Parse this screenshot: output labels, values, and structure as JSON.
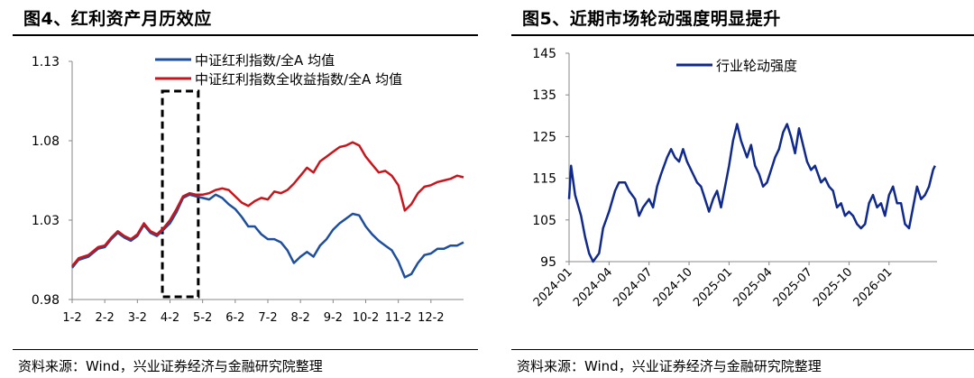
{
  "panels": {
    "left": {
      "title": "图4、红利资产月历效应",
      "source": "资料来源：Wind，兴业证券经济与金融研究院整理"
    },
    "right": {
      "title": "图5、近期市场轮动强度明显提升",
      "source": "资料来源：Wind，兴业证券经济与金融研究院整理"
    }
  },
  "colors": {
    "blue": "#1F4E9C",
    "red": "#C8151B",
    "navy": "#10298C"
  },
  "chart_data": [
    {
      "type": "line",
      "x_ticks": [
        "1-2",
        "2-2",
        "3-2",
        "4-2",
        "5-2",
        "6-2",
        "7-2",
        "8-2",
        "9-2",
        "10-2",
        "11-2",
        "12-2"
      ],
      "y_ticks": [
        "0.98",
        "1.03",
        "1.08",
        "1.13"
      ],
      "ylim": [
        0.98,
        1.13
      ],
      "grid": false,
      "legend_position": "top",
      "highlight_box": {
        "from": "3-25",
        "to": "4-28",
        "style": "dashed"
      },
      "series": [
        {
          "name": "中证红利指数/全A 均值",
          "color": "#1F4E9C",
          "values": [
            [
              1,
              1.0
            ],
            [
              1.2,
              1.005
            ],
            [
              1.5,
              1.007
            ],
            [
              1.8,
              1.012
            ],
            [
              2,
              1.013
            ],
            [
              2.2,
              1.018
            ],
            [
              2.4,
              1.022
            ],
            [
              2.6,
              1.019
            ],
            [
              2.8,
              1.017
            ],
            [
              3,
              1.02
            ],
            [
              3.2,
              1.027
            ],
            [
              3.4,
              1.022
            ],
            [
              3.6,
              1.02
            ],
            [
              3.8,
              1.024
            ],
            [
              4,
              1.028
            ],
            [
              4.2,
              1.035
            ],
            [
              4.4,
              1.044
            ],
            [
              4.6,
              1.046
            ],
            [
              4.8,
              1.045
            ],
            [
              5,
              1.044
            ],
            [
              5.2,
              1.043
            ],
            [
              5.4,
              1.046
            ],
            [
              5.6,
              1.044
            ],
            [
              5.8,
              1.04
            ],
            [
              6,
              1.037
            ],
            [
              6.2,
              1.032
            ],
            [
              6.4,
              1.026
            ],
            [
              6.6,
              1.026
            ],
            [
              6.8,
              1.021
            ],
            [
              7,
              1.018
            ],
            [
              7.2,
              1.018
            ],
            [
              7.4,
              1.016
            ],
            [
              7.6,
              1.011
            ],
            [
              7.8,
              1.003
            ],
            [
              8,
              1.007
            ],
            [
              8.2,
              1.01
            ],
            [
              8.4,
              1.007
            ],
            [
              8.6,
              1.014
            ],
            [
              8.8,
              1.018
            ],
            [
              9,
              1.024
            ],
            [
              9.2,
              1.028
            ],
            [
              9.4,
              1.031
            ],
            [
              9.6,
              1.034
            ],
            [
              9.8,
              1.033
            ],
            [
              10,
              1.026
            ],
            [
              10.2,
              1.021
            ],
            [
              10.4,
              1.017
            ],
            [
              10.6,
              1.014
            ],
            [
              10.8,
              1.011
            ],
            [
              11,
              1.004
            ],
            [
              11.2,
              0.994
            ],
            [
              11.4,
              0.996
            ],
            [
              11.6,
              1.003
            ],
            [
              11.8,
              1.008
            ],
            [
              12,
              1.009
            ],
            [
              12.2,
              1.012
            ],
            [
              12.4,
              1.012
            ],
            [
              12.6,
              1.014
            ],
            [
              12.8,
              1.014
            ],
            [
              13,
              1.016
            ]
          ]
        },
        {
          "name": "中证红利指数全收益指数/全A 均值",
          "color": "#C8151B",
          "values": [
            [
              1,
              1.001
            ],
            [
              1.2,
              1.006
            ],
            [
              1.5,
              1.008
            ],
            [
              1.8,
              1.013
            ],
            [
              2,
              1.014
            ],
            [
              2.2,
              1.019
            ],
            [
              2.4,
              1.023
            ],
            [
              2.6,
              1.02
            ],
            [
              2.8,
              1.018
            ],
            [
              3,
              1.021
            ],
            [
              3.2,
              1.028
            ],
            [
              3.4,
              1.023
            ],
            [
              3.6,
              1.021
            ],
            [
              3.8,
              1.025
            ],
            [
              4,
              1.03
            ],
            [
              4.2,
              1.037
            ],
            [
              4.4,
              1.045
            ],
            [
              4.6,
              1.047
            ],
            [
              4.8,
              1.046
            ],
            [
              5,
              1.046
            ],
            [
              5.2,
              1.047
            ],
            [
              5.4,
              1.049
            ],
            [
              5.6,
              1.05
            ],
            [
              5.8,
              1.049
            ],
            [
              6,
              1.045
            ],
            [
              6.2,
              1.041
            ],
            [
              6.4,
              1.039
            ],
            [
              6.6,
              1.042
            ],
            [
              6.8,
              1.044
            ],
            [
              7,
              1.043
            ],
            [
              7.2,
              1.048
            ],
            [
              7.4,
              1.047
            ],
            [
              7.6,
              1.049
            ],
            [
              7.8,
              1.053
            ],
            [
              8,
              1.058
            ],
            [
              8.2,
              1.063
            ],
            [
              8.4,
              1.06
            ],
            [
              8.6,
              1.067
            ],
            [
              8.8,
              1.07
            ],
            [
              9,
              1.073
            ],
            [
              9.2,
              1.076
            ],
            [
              9.4,
              1.077
            ],
            [
              9.6,
              1.079
            ],
            [
              9.8,
              1.077
            ],
            [
              10,
              1.07
            ],
            [
              10.2,
              1.065
            ],
            [
              10.4,
              1.06
            ],
            [
              10.6,
              1.061
            ],
            [
              10.8,
              1.058
            ],
            [
              11,
              1.052
            ],
            [
              11.2,
              1.036
            ],
            [
              11.4,
              1.04
            ],
            [
              11.6,
              1.047
            ],
            [
              11.8,
              1.051
            ],
            [
              12,
              1.052
            ],
            [
              12.2,
              1.054
            ],
            [
              12.4,
              1.055
            ],
            [
              12.6,
              1.056
            ],
            [
              12.8,
              1.058
            ],
            [
              13,
              1.057
            ]
          ]
        }
      ]
    },
    {
      "type": "line",
      "x_ticks": [
        "2024-01",
        "2024-04",
        "2024-07",
        "2024-10",
        "2025-01",
        "2025-04",
        "2025-07",
        "2025-10",
        "2026-01"
      ],
      "y_ticks": [
        "95",
        "105",
        "115",
        "125",
        "135",
        "145"
      ],
      "ylim": [
        95,
        145
      ],
      "grid": false,
      "legend_position": "top-left",
      "series": [
        {
          "name": "行业轮动强度",
          "color": "#10298C",
          "values": [
            [
              0,
              110
            ],
            [
              0.1,
              118
            ],
            [
              0.3,
              111
            ],
            [
              0.6,
              106
            ],
            [
              0.8,
              101
            ],
            [
              1.0,
              97
            ],
            [
              1.2,
              95
            ],
            [
              1.5,
              97
            ],
            [
              1.7,
              103
            ],
            [
              2.0,
              107
            ],
            [
              2.3,
              112
            ],
            [
              2.5,
              114
            ],
            [
              2.8,
              114
            ],
            [
              3.0,
              112
            ],
            [
              3.3,
              110
            ],
            [
              3.5,
              106
            ],
            [
              3.7,
              108
            ],
            [
              4.0,
              110
            ],
            [
              4.2,
              108
            ],
            [
              4.4,
              113
            ],
            [
              4.6,
              116
            ],
            [
              4.9,
              120
            ],
            [
              5.1,
              122
            ],
            [
              5.3,
              120
            ],
            [
              5.5,
              119
            ],
            [
              5.7,
              122
            ],
            [
              5.9,
              119
            ],
            [
              6.2,
              116
            ],
            [
              6.4,
              114
            ],
            [
              6.6,
              113
            ],
            [
              6.8,
              110
            ],
            [
              7.0,
              107
            ],
            [
              7.2,
              110
            ],
            [
              7.4,
              112
            ],
            [
              7.6,
              108
            ],
            [
              7.8,
              113
            ],
            [
              8.0,
              118
            ],
            [
              8.2,
              124
            ],
            [
              8.4,
              128
            ],
            [
              8.6,
              124
            ],
            [
              8.9,
              120
            ],
            [
              9.1,
              123
            ],
            [
              9.3,
              118
            ],
            [
              9.5,
              116
            ],
            [
              9.7,
              113
            ],
            [
              9.9,
              114
            ],
            [
              10.1,
              117
            ],
            [
              10.3,
              120
            ],
            [
              10.5,
              122
            ],
            [
              10.7,
              126
            ],
            [
              10.9,
              128
            ],
            [
              11.1,
              125
            ],
            [
              11.3,
              121
            ],
            [
              11.5,
              127
            ],
            [
              11.7,
              123
            ],
            [
              11.9,
              119
            ],
            [
              12.1,
              117
            ],
            [
              12.3,
              118
            ],
            [
              12.6,
              114
            ],
            [
              12.8,
              115
            ],
            [
              13.0,
              113
            ],
            [
              13.2,
              112
            ],
            [
              13.4,
              108
            ],
            [
              13.6,
              109
            ],
            [
              13.8,
              106
            ],
            [
              14.0,
              107
            ],
            [
              14.2,
              106
            ],
            [
              14.4,
              104
            ],
            [
              14.6,
              103
            ],
            [
              14.8,
              104
            ],
            [
              15.0,
              109
            ],
            [
              15.2,
              111
            ],
            [
              15.4,
              108
            ],
            [
              15.6,
              109
            ],
            [
              15.8,
              106
            ],
            [
              16.0,
              111
            ],
            [
              16.2,
              113
            ],
            [
              16.4,
              109
            ],
            [
              16.6,
              109
            ],
            [
              16.8,
              104
            ],
            [
              17.0,
              103
            ],
            [
              17.2,
              108
            ],
            [
              17.4,
              113
            ],
            [
              17.6,
              110
            ],
            [
              17.8,
              111
            ],
            [
              18.0,
              113
            ],
            [
              18.2,
              117
            ],
            [
              18.3,
              118
            ]
          ]
        }
      ]
    }
  ]
}
